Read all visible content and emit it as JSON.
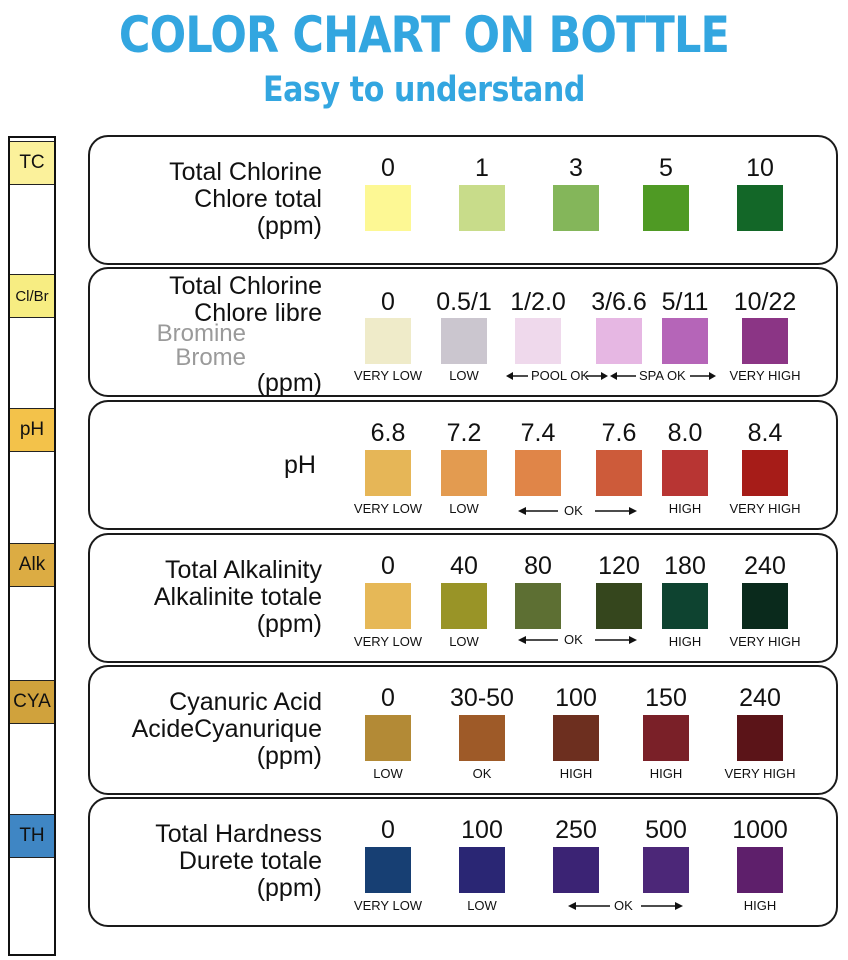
{
  "header": {
    "title": "COLOR CHART ON BOTTLE",
    "subtitle": "Easy to understand"
  },
  "strip": [
    {
      "label": "TC",
      "color": "#fbf19b"
    },
    {
      "label": "Cl/Br",
      "color": "#f7ed82"
    },
    {
      "label": "pH",
      "color": "#f3c24a"
    },
    {
      "label": "Alk",
      "color": "#dcac43"
    },
    {
      "label": "CYA",
      "color": "#d0a23c"
    },
    {
      "label": "TH",
      "color": "#3f86c4"
    }
  ],
  "rows": [
    {
      "label": [
        "Total Chlorine",
        "Chlore total",
        "(ppm)"
      ],
      "values": [
        "0",
        "1",
        "3",
        "5",
        "10"
      ],
      "colors": [
        "#fdf894",
        "#c8dc8a",
        "#84b65a",
        "#4f9a24",
        "#136728"
      ],
      "tags": [
        "",
        "",
        "",
        "",
        ""
      ],
      "ok_label": ""
    },
    {
      "label": [
        "Total Chlorine",
        "Chlore libre",
        "Bromine",
        "Brome",
        "(ppm)"
      ],
      "values": [
        "0",
        "0.5/1",
        "1/2.0",
        "3/6.6",
        "5/11",
        "10/22"
      ],
      "colors": [
        "#efebc9",
        "#cbc6cf",
        "#efd9ec",
        "#e6b7e3",
        "#b565b8",
        "#8b3585"
      ],
      "tags": [
        "VERY LOW",
        "LOW",
        "",
        "",
        "",
        "VERY HIGH"
      ],
      "pool_ok": "POOL OK",
      "spa_ok": "SPA OK"
    },
    {
      "label": [
        "pH"
      ],
      "values": [
        "6.8",
        "7.2",
        "7.4",
        "7.6",
        "8.0",
        "8.4"
      ],
      "colors": [
        "#e6b657",
        "#e39b50",
        "#e08548",
        "#cd5b3a",
        "#b83533",
        "#a61c18"
      ],
      "tags": [
        "VERY LOW",
        "LOW",
        "",
        "",
        "HIGH",
        "VERY HIGH"
      ],
      "ok_label": "OK"
    },
    {
      "label": [
        "Total Alkalinity",
        "Alkalinite totale",
        "(ppm)"
      ],
      "values": [
        "0",
        "40",
        "80",
        "120",
        "180",
        "240"
      ],
      "colors": [
        "#e6b857",
        "#999427",
        "#5d6f33",
        "#35461d",
        "#0e4330",
        "#0a2a1c"
      ],
      "tags": [
        "VERY LOW",
        "LOW",
        "",
        "",
        "HIGH",
        "VERY HIGH"
      ],
      "ok_label": "OK"
    },
    {
      "label": [
        "Cyanuric Acid",
        "AcideCyanurique",
        "(ppm)"
      ],
      "values": [
        "0",
        "30-50",
        "100",
        "150",
        "240"
      ],
      "colors": [
        "#b38a36",
        "#9e5a28",
        "#6d2f1f",
        "#7a2028",
        "#5b1418"
      ],
      "tags": [
        "LOW",
        "OK",
        "HIGH",
        "HIGH",
        "VERY HIGH"
      ],
      "ok_label": ""
    },
    {
      "label": [
        "Total Hardness",
        "Durete totale",
        "(ppm)"
      ],
      "values": [
        "0",
        "100",
        "250",
        "500",
        "1000"
      ],
      "colors": [
        "#173f73",
        "#2a2674",
        "#3b2374",
        "#4c2778",
        "#5e1f6b"
      ],
      "tags": [
        "VERY LOW",
        "LOW",
        "",
        "",
        "HIGH"
      ],
      "ok_label": "OK"
    }
  ]
}
